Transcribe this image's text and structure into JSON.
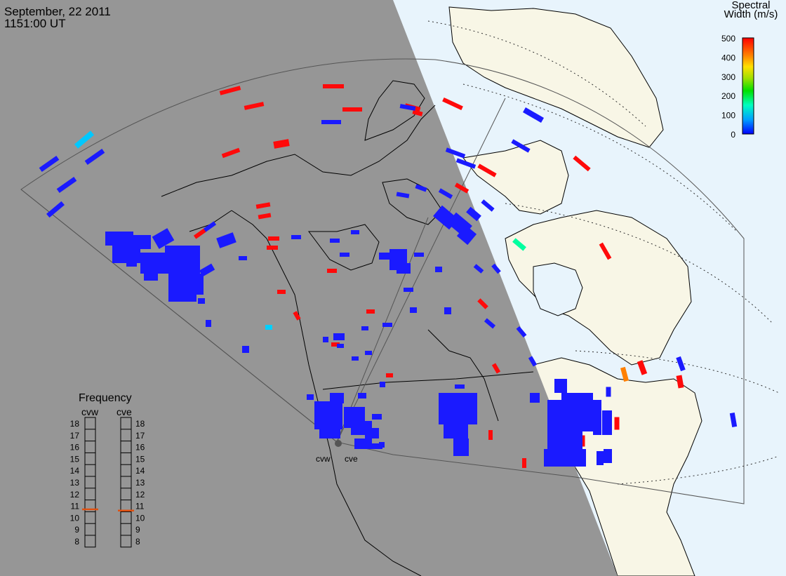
{
  "title": {
    "date": "September, 22 2011",
    "time": "1151:00 UT"
  },
  "colorbar": {
    "title_line1": "Spectral",
    "title_line2": "Width (m/s)",
    "ticks": [
      "500",
      "400",
      "300",
      "200",
      "100",
      "0"
    ],
    "colors": [
      "#0000ff",
      "#00a0ff",
      "#00ffc0",
      "#00e000",
      "#a0e000",
      "#ffe000",
      "#ff8000",
      "#ff0000"
    ]
  },
  "frequency_panel": {
    "title": "Frequency",
    "radars": [
      "cvw",
      "cve"
    ],
    "scale": [
      "18",
      "17",
      "16",
      "15",
      "14",
      "13",
      "12",
      "11",
      "10",
      "9",
      "8"
    ],
    "cvw_value": 10.7,
    "cve_value": 10.6
  },
  "radar_labels": {
    "west": "cvw",
    "east": "cve"
  },
  "colors": {
    "night": "#969696",
    "ocean_day": "#e8f4fc",
    "land_day": "#f8f6e6",
    "echo_low": "#1a1aff",
    "echo_high": "#ff0a0a",
    "freq_marker": "#e05010"
  }
}
